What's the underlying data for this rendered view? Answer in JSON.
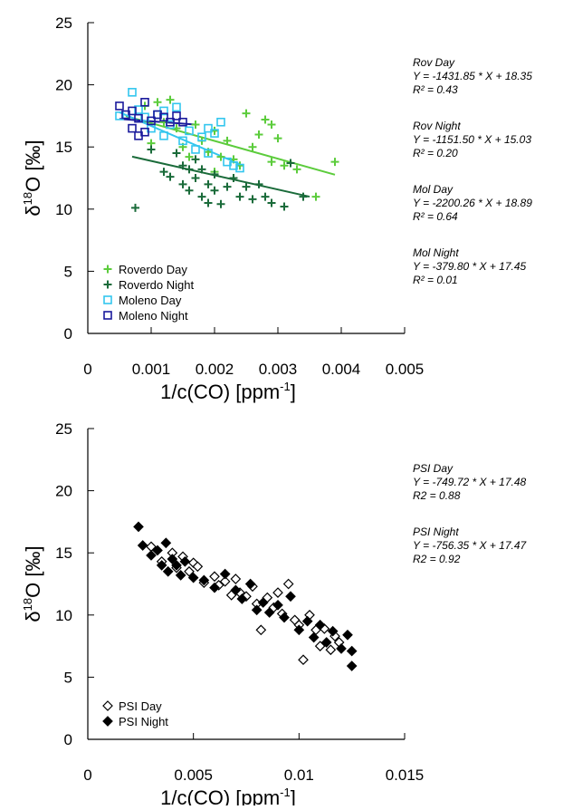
{
  "chart_data": [
    {
      "type": "scatter",
      "y_label": [
        "δ",
        "18",
        "O [‰]"
      ],
      "x_label": [
        "1/c(CO) [ppm",
        "-1",
        "]"
      ],
      "xlim": [
        0,
        0.005
      ],
      "xticks": [
        0,
        0.001,
        0.002,
        0.003,
        0.004,
        0.005
      ],
      "ylim": [
        0,
        25
      ],
      "yticks": [
        0,
        5,
        10,
        15,
        20,
        25
      ],
      "legend": "lower left",
      "series": [
        {
          "name": "Roverdo Day",
          "color": "#5ccc3c",
          "marker": "plus",
          "x": [
            0.0009,
            0.0011,
            0.0013,
            0.001,
            0.0012,
            0.0014,
            0.0015,
            0.0017,
            0.0018,
            0.0019,
            0.002,
            0.0021,
            0.0022,
            0.0023,
            0.0024,
            0.0025,
            0.0026,
            0.0027,
            0.0028,
            0.0029,
            0.0029,
            0.003,
            0.0031,
            0.0033,
            0.0036,
            0.0039,
            0.0016,
            0.002
          ],
          "values": [
            18.3,
            18.6,
            18.8,
            15.3,
            17.0,
            16.5,
            15.0,
            16.8,
            15.5,
            14.6,
            16.3,
            14.2,
            15.5,
            14.0,
            13.5,
            17.7,
            15.0,
            16.0,
            17.2,
            16.8,
            13.8,
            15.7,
            13.5,
            13.2,
            11.0,
            13.8,
            14.2,
            13.0
          ]
        },
        {
          "name": "Roverdo Night",
          "color": "#1a6b3a",
          "marker": "plus",
          "x": [
            0.00075,
            0.001,
            0.0012,
            0.0013,
            0.0014,
            0.0015,
            0.0015,
            0.0016,
            0.0017,
            0.0017,
            0.0018,
            0.0018,
            0.0019,
            0.002,
            0.002,
            0.0021,
            0.0022,
            0.0023,
            0.0024,
            0.0025,
            0.0026,
            0.0027,
            0.0028,
            0.0029,
            0.0031,
            0.0032,
            0.0034,
            0.0016,
            0.0019
          ],
          "values": [
            10.1,
            14.8,
            13.0,
            12.6,
            14.5,
            13.5,
            12.0,
            11.5,
            14.0,
            12.5,
            13.2,
            11.0,
            10.5,
            12.8,
            11.5,
            10.4,
            11.8,
            12.5,
            11.0,
            11.8,
            10.8,
            12.0,
            11.0,
            10.5,
            10.2,
            13.7,
            11.0,
            13.2,
            12.0
          ]
        },
        {
          "name": "Moleno Day",
          "color": "#33c6ee",
          "marker": "square",
          "x": [
            0.0005,
            0.0007,
            0.0008,
            0.0009,
            0.001,
            0.0011,
            0.0012,
            0.0013,
            0.0014,
            0.0015,
            0.0016,
            0.0017,
            0.0018,
            0.0019,
            0.002,
            0.0021,
            0.0022,
            0.0023,
            0.0024,
            0.0019,
            0.0012
          ],
          "values": [
            17.5,
            19.4,
            18.0,
            17.4,
            16.5,
            17.6,
            15.9,
            16.8,
            18.2,
            15.5,
            16.3,
            14.8,
            15.8,
            14.5,
            16.1,
            17.0,
            13.8,
            13.5,
            13.3,
            16.5,
            17.9
          ]
        },
        {
          "name": "Moleno Night",
          "color": "#1a1a9c",
          "marker": "square",
          "x": [
            0.0005,
            0.0006,
            0.0007,
            0.0008,
            0.0009,
            0.0009,
            0.001,
            0.0011,
            0.0012,
            0.0013,
            0.0014,
            0.0015,
            0.0008,
            0.0007
          ],
          "values": [
            18.3,
            17.6,
            17.9,
            17.3,
            16.2,
            18.6,
            17.1,
            17.6,
            17.4,
            17.0,
            17.5,
            17.0,
            15.9,
            16.5
          ]
        }
      ],
      "fits": [
        {
          "color": "#5ccc3c",
          "x": [
            0.0006,
            0.0039
          ],
          "values": [
            17.49,
            12.77
          ]
        },
        {
          "color": "#1a6b3a",
          "x": [
            0.0007,
            0.0035
          ],
          "values": [
            14.22,
            11.0
          ]
        },
        {
          "color": "#33c6ee",
          "x": [
            0.0005,
            0.0024
          ],
          "values": [
            17.79,
            13.61
          ]
        },
        {
          "color": "#1a1a9c",
          "x": [
            0.0005,
            0.0017
          ],
          "values": [
            17.26,
            16.8
          ]
        }
      ],
      "annotations": [
        [
          "Rov Day",
          "Y = -1431.85 * X + 18.35",
          "R² = 0.43"
        ],
        [
          "Rov Night",
          "Y = -1151.50 * X + 15.03",
          "R² = 0.20"
        ],
        [
          "Mol Day",
          "Y = -2200.26 * X + 18.89",
          "R² = 0.64"
        ],
        [
          "Mol Night",
          "Y = -379.80 * X + 17.45",
          "R² = 0.01"
        ]
      ]
    },
    {
      "type": "scatter",
      "y_label": [
        "δ",
        "18",
        "O [‰]"
      ],
      "x_label": [
        "1/c(CO) [ppm",
        "-1",
        "]"
      ],
      "xlim": [
        0,
        0.015
      ],
      "xticks": [
        0,
        0.005,
        0.01,
        0.015
      ],
      "ylim": [
        0,
        25
      ],
      "yticks": [
        0,
        5,
        10,
        15,
        20,
        25
      ],
      "legend": "lower left",
      "series": [
        {
          "name": "PSI Day",
          "color": "#000000",
          "marker": "diamond-open",
          "x": [
            0.003,
            0.0035,
            0.004,
            0.0042,
            0.0045,
            0.0048,
            0.005,
            0.0055,
            0.006,
            0.0062,
            0.0065,
            0.007,
            0.0072,
            0.0075,
            0.0078,
            0.008,
            0.0082,
            0.0085,
            0.0088,
            0.009,
            0.0092,
            0.0095,
            0.0098,
            0.01,
            0.0102,
            0.0105,
            0.0108,
            0.011,
            0.0112,
            0.0115,
            0.0117,
            0.0119,
            0.0052,
            0.0068
          ],
          "values": [
            15.5,
            14.3,
            15.0,
            13.8,
            14.7,
            13.5,
            14.2,
            12.6,
            13.1,
            12.4,
            12.7,
            12.9,
            11.8,
            11.5,
            12.3,
            10.9,
            8.8,
            11.4,
            10.6,
            11.8,
            10.1,
            12.5,
            9.6,
            9.2,
            6.4,
            10.0,
            8.8,
            7.5,
            8.9,
            7.2,
            8.3,
            7.8,
            13.9,
            11.6
          ]
        },
        {
          "name": "PSI Night",
          "color": "#000000",
          "marker": "diamond-filled",
          "x": [
            0.0024,
            0.0026,
            0.003,
            0.0033,
            0.0035,
            0.0037,
            0.0038,
            0.004,
            0.0042,
            0.0044,
            0.0046,
            0.005,
            0.0055,
            0.006,
            0.0065,
            0.007,
            0.0073,
            0.0077,
            0.008,
            0.0083,
            0.0086,
            0.009,
            0.0093,
            0.0096,
            0.01,
            0.0104,
            0.0107,
            0.011,
            0.0113,
            0.0116,
            0.012,
            0.0123,
            0.0125,
            0.0125
          ],
          "values": [
            17.1,
            15.6,
            14.8,
            15.2,
            14.0,
            15.8,
            13.5,
            14.5,
            14.0,
            13.2,
            14.3,
            13.0,
            12.8,
            12.2,
            13.3,
            12.0,
            11.3,
            12.5,
            10.4,
            11.0,
            10.2,
            10.8,
            9.8,
            11.5,
            8.8,
            9.5,
            8.2,
            9.2,
            7.8,
            8.7,
            7.3,
            8.4,
            7.1,
            5.9
          ]
        }
      ],
      "annotations": [
        [
          "PSI Day",
          "Y = -749.72 * X + 17.48",
          "R2 = 0.88"
        ],
        [
          "PSI Night",
          "Y = -756.35 * X + 17.47",
          "R2 = 0.92"
        ]
      ]
    }
  ]
}
